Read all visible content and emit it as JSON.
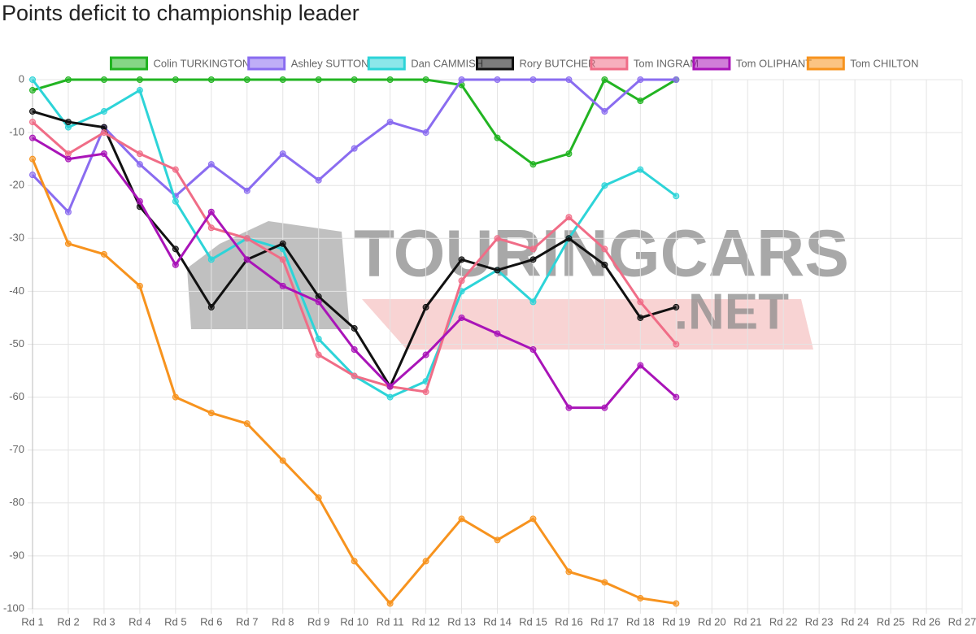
{
  "chart_data": {
    "type": "line",
    "title": "Points deficit to championship leader",
    "categories": [
      "Rd 1",
      "Rd 2",
      "Rd 3",
      "Rd 4",
      "Rd 5",
      "Rd 6",
      "Rd 7",
      "Rd 8",
      "Rd 9",
      "Rd 10",
      "Rd 11",
      "Rd 12",
      "Rd 13",
      "Rd 14",
      "Rd 15",
      "Rd 16",
      "Rd 17",
      "Rd 18",
      "Rd 19",
      "Rd 20",
      "Rd 21",
      "Rd 22",
      "Rd 23",
      "Rd 24",
      "Rd 25",
      "Rd 26",
      "Rd 27"
    ],
    "series": [
      {
        "name": "Colin TURKINGTON",
        "color": "#22b422",
        "values": [
          -2,
          0,
          0,
          0,
          0,
          0,
          0,
          0,
          0,
          0,
          0,
          0,
          -1,
          -11,
          -16,
          -14,
          0,
          -4,
          0,
          null,
          null,
          null,
          null,
          null,
          null,
          null,
          null
        ]
      },
      {
        "name": "Ashley SUTTON",
        "color": "#8a6cf0",
        "values": [
          -18,
          -25,
          -9,
          -16,
          -22,
          -16,
          -21,
          -14,
          -19,
          -13,
          -8,
          -10,
          0,
          0,
          0,
          0,
          -6,
          0,
          0,
          null,
          null,
          null,
          null,
          null,
          null,
          null,
          null
        ]
      },
      {
        "name": "Dan CAMMISH",
        "color": "#2dd4d8",
        "values": [
          0,
          -9,
          -6,
          -2,
          -23,
          -34,
          -30,
          -32,
          -49,
          -56,
          -60,
          -57,
          -40,
          -36,
          -42,
          -30,
          -20,
          -17,
          -22,
          null,
          null,
          null,
          null,
          null,
          null,
          null,
          null
        ]
      },
      {
        "name": "Rory BUTCHER",
        "color": "#111111",
        "values": [
          -6,
          -8,
          -9,
          -24,
          -32,
          -43,
          -34,
          -31,
          -41,
          -47,
          -58,
          -43,
          -34,
          -36,
          -34,
          -30,
          -35,
          -45,
          -43,
          null,
          null,
          null,
          null,
          null,
          null,
          null,
          null
        ]
      },
      {
        "name": "Tom INGRAM",
        "color": "#f06d87",
        "values": [
          -8,
          -14,
          -10,
          -14,
          -17,
          -28,
          -30,
          -34,
          -52,
          -56,
          -58,
          -59,
          -38,
          -30,
          -32,
          -26,
          -32,
          -42,
          -50,
          null,
          null,
          null,
          null,
          null,
          null,
          null,
          null
        ]
      },
      {
        "name": "Tom OLIPHANT",
        "color": "#a914b8",
        "values": [
          -11,
          -15,
          -14,
          -23,
          -35,
          -25,
          -34,
          -39,
          -42,
          -51,
          -58,
          -52,
          -45,
          -48,
          -51,
          -62,
          -62,
          -54,
          -60,
          null,
          null,
          null,
          null,
          null,
          null,
          null,
          null
        ]
      },
      {
        "name": "Tom CHILTON",
        "color": "#f7931e",
        "values": [
          -15,
          -31,
          -33,
          -39,
          -60,
          -63,
          -65,
          -72,
          -79,
          -91,
          -99,
          -91,
          -83,
          -87,
          -83,
          -93,
          -95,
          -98,
          -99,
          null,
          null,
          null,
          null,
          null,
          null,
          null,
          null
        ]
      }
    ],
    "ylim": [
      -100,
      0
    ],
    "yticks": [
      0,
      -10,
      -20,
      -30,
      -40,
      -50,
      -60,
      -70,
      -80,
      -90,
      -100
    ],
    "grid": true,
    "watermark": [
      "TOURINGCARS",
      ".NET"
    ]
  }
}
